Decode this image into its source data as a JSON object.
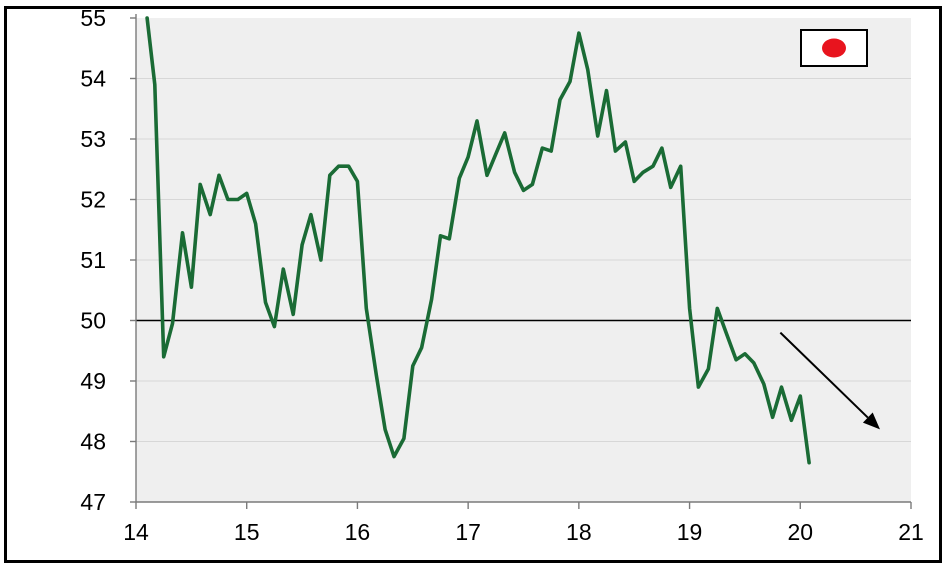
{
  "chart_data": {
    "type": "line",
    "title": "",
    "xlabel": "",
    "ylabel": "",
    "xlim": [
      14,
      21
    ],
    "ylim": [
      47,
      55
    ],
    "x_ticks": [
      "14",
      "15",
      "16",
      "17",
      "18",
      "19",
      "20",
      "21"
    ],
    "y_ticks": [
      "47",
      "48",
      "49",
      "50",
      "51",
      "52",
      "53",
      "54",
      "55"
    ],
    "reference_line": 50,
    "grid": "horizontal",
    "plot_background": "#efefef",
    "line_color": "#1a6b35",
    "legend": {
      "placement": "top-right",
      "icon": "japan-flag-icon",
      "flag_color": "#e8141e"
    },
    "annotation": {
      "type": "arrow",
      "direction": "down-right",
      "from": [
        19.82,
        49.8
      ],
      "to": [
        20.72,
        48.2
      ]
    },
    "series": [
      {
        "x": [
          14.1,
          14.17,
          14.25,
          14.33,
          14.42,
          14.5,
          14.58,
          14.67,
          14.75,
          14.83,
          14.92,
          15.0,
          15.08,
          15.17,
          15.25,
          15.33,
          15.42,
          15.5,
          15.58,
          15.67,
          15.75,
          15.83,
          15.92,
          16.0,
          16.08,
          16.17,
          16.25,
          16.33,
          16.42,
          16.5,
          16.58,
          16.67,
          16.75,
          16.83,
          16.92,
          17.0,
          17.08,
          17.17,
          17.25,
          17.33,
          17.42,
          17.5,
          17.58,
          17.67,
          17.75,
          17.83,
          17.92,
          18.0,
          18.08,
          18.17,
          18.25,
          18.33,
          18.42,
          18.5,
          18.58,
          18.67,
          18.75,
          18.83,
          18.92,
          19.0,
          19.08,
          19.17,
          19.25,
          19.33,
          19.42,
          19.5,
          19.58,
          19.67,
          19.75,
          19.83,
          19.92,
          20.0,
          20.08
        ],
        "values": [
          55.0,
          53.9,
          49.4,
          49.95,
          51.45,
          50.55,
          52.25,
          51.75,
          52.4,
          52.0,
          52.0,
          52.1,
          51.6,
          50.3,
          49.9,
          50.85,
          50.1,
          51.25,
          51.75,
          51.0,
          52.4,
          52.55,
          52.55,
          52.3,
          50.2,
          49.1,
          48.2,
          47.75,
          48.05,
          49.25,
          49.55,
          50.35,
          51.4,
          51.35,
          52.35,
          52.7,
          53.3,
          52.4,
          52.75,
          53.1,
          52.45,
          52.15,
          52.25,
          52.85,
          52.8,
          53.65,
          53.95,
          54.75,
          54.15,
          53.05,
          53.8,
          52.8,
          52.95,
          52.3,
          52.45,
          52.55,
          52.85,
          52.2,
          52.55,
          50.2,
          48.9,
          49.2,
          50.2,
          49.8,
          49.35,
          49.45,
          49.3,
          48.95,
          48.4,
          48.9,
          48.35,
          48.75,
          47.65
        ]
      }
    ]
  }
}
